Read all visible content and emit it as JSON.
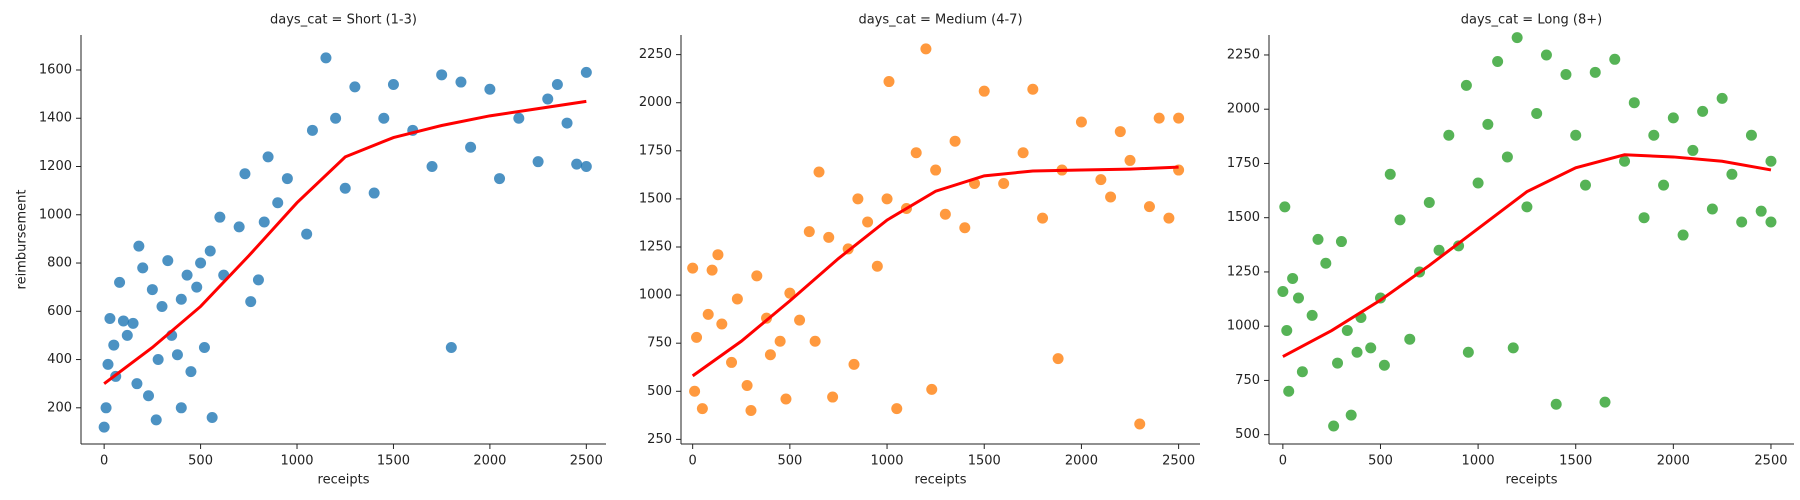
{
  "chart_data": [
    {
      "type": "scatter",
      "title": "days_cat = Short (1-3)",
      "xlabel": "receipts",
      "ylabel": "reimbursement",
      "color": "#1f77b4",
      "x": [
        0,
        10,
        20,
        30,
        50,
        60,
        80,
        100,
        120,
        150,
        170,
        180,
        200,
        230,
        250,
        270,
        280,
        300,
        330,
        350,
        380,
        400,
        400,
        430,
        450,
        480,
        500,
        520,
        550,
        560,
        600,
        620,
        700,
        730,
        760,
        800,
        830,
        850,
        900,
        950,
        1050,
        1080,
        1150,
        1200,
        1250,
        1300,
        1400,
        1450,
        1500,
        1600,
        1700,
        1750,
        1800,
        1850,
        1900,
        2000,
        2050,
        2150,
        2250,
        2300,
        2350,
        2400,
        2450,
        2500,
        2500
      ],
      "values": [
        120,
        200,
        380,
        570,
        460,
        330,
        720,
        560,
        500,
        550,
        300,
        870,
        780,
        250,
        690,
        150,
        400,
        620,
        810,
        500,
        420,
        200,
        650,
        750,
        350,
        700,
        800,
        450,
        850,
        160,
        990,
        750,
        950,
        1170,
        640,
        730,
        970,
        1240,
        1050,
        1150,
        920,
        1350,
        1650,
        1400,
        1110,
        1530,
        1090,
        1400,
        1540,
        1350,
        1200,
        1580,
        450,
        1550,
        1280,
        1520,
        1150,
        1400,
        1220,
        1480,
        1540,
        1380,
        1210,
        1200,
        1590
      ],
      "trend": {
        "x": [
          0,
          250,
          500,
          750,
          1000,
          1250,
          1500,
          1750,
          2000,
          2250,
          2500
        ],
        "values": [
          300,
          450,
          620,
          830,
          1050,
          1240,
          1320,
          1370,
          1410,
          1440,
          1470
        ],
        "color": "red"
      },
      "xlim": [
        -120,
        2602
      ],
      "ylim": [
        50,
        1745
      ],
      "xticks": [
        0,
        500,
        1000,
        1500,
        2000,
        2500
      ],
      "yticks": [
        200,
        400,
        600,
        800,
        1000,
        1200,
        1400,
        1600
      ]
    },
    {
      "type": "scatter",
      "title": "days_cat = Medium (4-7)",
      "xlabel": "receipts",
      "color": "#ff7f0e",
      "x": [
        0,
        10,
        20,
        50,
        80,
        100,
        130,
        150,
        200,
        230,
        280,
        300,
        330,
        380,
        400,
        450,
        480,
        500,
        550,
        600,
        630,
        650,
        700,
        720,
        800,
        830,
        850,
        900,
        950,
        1000,
        1010,
        1050,
        1100,
        1150,
        1200,
        1230,
        1250,
        1300,
        1350,
        1400,
        1450,
        1500,
        1600,
        1700,
        1750,
        1800,
        1880,
        1900,
        2000,
        2100,
        2150,
        2200,
        2250,
        2300,
        2350,
        2400,
        2450,
        2500,
        2500
      ],
      "values": [
        1140,
        500,
        780,
        410,
        900,
        1130,
        1210,
        850,
        650,
        980,
        530,
        400,
        1100,
        880,
        690,
        760,
        460,
        1010,
        870,
        1330,
        760,
        1640,
        1300,
        470,
        1240,
        640,
        1500,
        1380,
        1150,
        1500,
        2110,
        410,
        1450,
        1740,
        2280,
        510,
        1650,
        1420,
        1800,
        1350,
        1580,
        2060,
        1580,
        1740,
        2070,
        1400,
        670,
        1650,
        1900,
        1600,
        1510,
        1850,
        1700,
        330,
        1460,
        1920,
        1400,
        1920,
        1650
      ],
      "trend": {
        "x": [
          0,
          250,
          500,
          750,
          1000,
          1250,
          1500,
          1750,
          2000,
          2250,
          2500
        ],
        "values": [
          580,
          760,
          970,
          1190,
          1390,
          1540,
          1620,
          1645,
          1650,
          1655,
          1665
        ],
        "color": "red"
      },
      "xlim": [
        -60,
        2610
      ],
      "ylim": [
        226,
        2352
      ],
      "xticks": [
        0,
        500,
        1000,
        1500,
        2000,
        2500
      ],
      "yticks": [
        250,
        500,
        750,
        1000,
        1250,
        1500,
        1750,
        2000,
        2250
      ]
    },
    {
      "type": "scatter",
      "title": "days_cat = Long (8+)",
      "xlabel": "receipts",
      "color": "#2ca02c",
      "x": [
        0,
        10,
        20,
        30,
        50,
        80,
        100,
        150,
        180,
        220,
        260,
        280,
        300,
        330,
        350,
        380,
        400,
        450,
        500,
        520,
        550,
        600,
        650,
        700,
        750,
        800,
        850,
        900,
        940,
        950,
        1000,
        1050,
        1100,
        1150,
        1180,
        1200,
        1250,
        1300,
        1350,
        1400,
        1450,
        1500,
        1550,
        1600,
        1650,
        1700,
        1750,
        1800,
        1850,
        1900,
        1950,
        2000,
        2050,
        2100,
        2150,
        2200,
        2250,
        2300,
        2350,
        2400,
        2450,
        2500,
        2500
      ],
      "values": [
        1160,
        1550,
        980,
        700,
        1220,
        1130,
        790,
        1050,
        1400,
        1290,
        540,
        830,
        1390,
        980,
        590,
        880,
        1040,
        900,
        1130,
        820,
        1700,
        1490,
        940,
        1250,
        1570,
        1350,
        1880,
        1370,
        2110,
        880,
        1660,
        1930,
        2220,
        1780,
        900,
        2330,
        1550,
        1980,
        2250,
        640,
        2160,
        1880,
        1650,
        2170,
        650,
        2230,
        1760,
        2030,
        1500,
        1880,
        1650,
        1960,
        1420,
        1810,
        1990,
        1540,
        2050,
        1700,
        1480,
        1880,
        1530,
        1760,
        1480
      ],
      "trend": {
        "x": [
          0,
          250,
          500,
          750,
          1000,
          1250,
          1500,
          1750,
          2000,
          2250,
          2500
        ],
        "values": [
          860,
          980,
          1120,
          1280,
          1450,
          1620,
          1730,
          1790,
          1780,
          1760,
          1720
        ],
        "color": "red"
      },
      "xlim": [
        -71,
        2618
      ],
      "ylim": [
        457,
        2342
      ],
      "xticks": [
        0,
        500,
        1000,
        1500,
        2000,
        2500
      ],
      "yticks": [
        500,
        750,
        1000,
        1250,
        1500,
        1750,
        2000,
        2250
      ]
    }
  ]
}
